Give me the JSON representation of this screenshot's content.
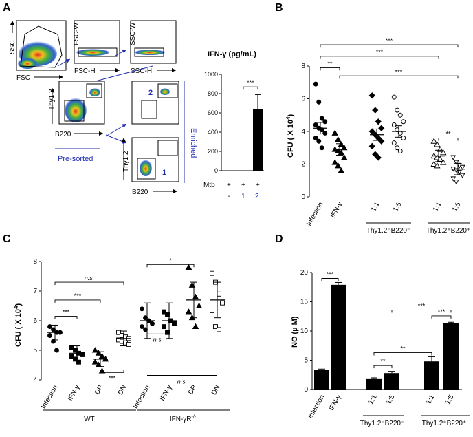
{
  "figure": {
    "panel_labels": {
      "A": "A",
      "B": "B",
      "C": "C",
      "D": "D"
    }
  },
  "panel_a": {
    "gates": {
      "ssc": "SSC",
      "fsc": "FSC",
      "fsc_w": "FSC-W",
      "fsc_h": "FSC-H",
      "ssc_w": "SSC-W",
      "ssc_h": "SSC-H",
      "thy12": "Thy1.2",
      "b220": "B220",
      "thy12_b": "Thy1.2",
      "b220_b": "B220"
    },
    "pre_sorted": "Pre-sorted",
    "enriched": "Enriched",
    "gate_num_1": "1",
    "gate_num_2": "2",
    "bar_title": "IFN-γ (pg/mL)",
    "mtb_label": "Mtb",
    "mtb_row": [
      "+",
      "+",
      "+"
    ],
    "cond_row": [
      "-",
      "1",
      "2"
    ],
    "sig": "***"
  },
  "chart_data": [
    {
      "panel": "A-inset",
      "type": "bar",
      "title": "IFN-γ (pg/mL)",
      "ylim": [
        0,
        1000
      ],
      "yticks": [
        "0",
        "200",
        "400",
        "600",
        "800",
        "1000"
      ],
      "yticks_values": [
        0,
        200,
        400,
        600,
        800,
        1000
      ],
      "categories": [
        "-",
        "1",
        "2"
      ],
      "values": [
        0,
        0,
        640
      ],
      "errors": [
        0,
        0,
        150
      ],
      "significance": "***"
    },
    {
      "panel": "B",
      "type": "scatter",
      "ylabel": "CFU ( X 10",
      "ylabel_sup": "4",
      "ylabel_tail": ")",
      "ylim": [
        0,
        8
      ],
      "yticks": [
        "0",
        "2",
        "4",
        "6",
        "8"
      ],
      "yticks_values": [
        0,
        2,
        4,
        6,
        8
      ],
      "categories": [
        "Infection",
        "IFN-γ",
        "1:1",
        "1:5",
        "1:1",
        "1:5"
      ],
      "groups": [
        {
          "label": "Thy1.2⁻B220⁻",
          "members": [
            "1:1",
            "1:5"
          ]
        },
        {
          "label": "Thy1.2⁺B220⁺",
          "members": [
            "1:1",
            "1:5"
          ]
        }
      ],
      "means": [
        4.2,
        2.9,
        3.8,
        4.0,
        2.5,
        1.7
      ],
      "points": [
        [
          6.9,
          5.8,
          4.8,
          4.6,
          4.4,
          4.2,
          4.1,
          3.9,
          3.6,
          3.4,
          3.0
        ],
        [
          3.9,
          3.5,
          3.2,
          3.0,
          2.9,
          2.8,
          2.7,
          2.4,
          2.1,
          1.9,
          1.6
        ],
        [
          6.2,
          5.3,
          4.6,
          4.2,
          4.0,
          3.8,
          3.6,
          3.4,
          3.1,
          2.6,
          2.4
        ],
        [
          6.1,
          5.3,
          5.0,
          4.6,
          4.4,
          4.1,
          3.9,
          3.6,
          3.3,
          3.0,
          2.8
        ],
        [
          3.4,
          3.2,
          2.9,
          2.7,
          2.5,
          2.4,
          2.3,
          2.1,
          2.0,
          1.9
        ],
        [
          2.4,
          2.1,
          1.9,
          1.8,
          1.7,
          1.6,
          1.5,
          1.3,
          1.1,
          0.9
        ]
      ],
      "significance": [
        "**",
        "***",
        "***",
        "***",
        "**"
      ]
    },
    {
      "panel": "C",
      "type": "scatter",
      "ylabel": "CFU ( X 10",
      "ylabel_sup": "4",
      "ylabel_tail": ")",
      "ylim": [
        4,
        8
      ],
      "yticks": [
        "4",
        "5",
        "6",
        "7",
        "8"
      ],
      "yticks_values": [
        4,
        5,
        6,
        7,
        8
      ],
      "categories": [
        "Infection",
        "IFN-γ",
        "DP",
        "DN",
        "Infection",
        "IFN-γ",
        "DP",
        "DN"
      ],
      "groups": [
        {
          "label": "WT",
          "members": [
            "Infection",
            "IFN-γ",
            "DP",
            "DN"
          ]
        },
        {
          "label": "IFN-γR",
          "label_sup": "-/-",
          "members": [
            "Infection",
            "IFN-γ",
            "DP",
            "DN"
          ]
        }
      ],
      "means": [
        5.6,
        4.9,
        4.7,
        5.4,
        6.0,
        6.0,
        6.7,
        6.7
      ],
      "points": [
        [
          5.8,
          5.7,
          5.6,
          5.6,
          5.5,
          5.3,
          5.0
        ],
        [
          5.1,
          5.0,
          4.9,
          4.85,
          4.8,
          4.7,
          4.6
        ],
        [
          5.0,
          4.9,
          4.8,
          4.7,
          4.6,
          4.5,
          4.3
        ],
        [
          5.6,
          5.5,
          5.45,
          5.4,
          5.35,
          5.3,
          5.25,
          5.2
        ],
        [
          6.4,
          6.1,
          6.0,
          5.9,
          5.8,
          5.7
        ],
        [
          6.3,
          6.2,
          6.0,
          5.9,
          5.8,
          5.6
        ],
        [
          7.8,
          7.2,
          6.8,
          6.5,
          6.3,
          6.1,
          5.8
        ],
        [
          7.6,
          7.3,
          6.9,
          6.6,
          6.2,
          5.8,
          5.7
        ]
      ],
      "significance": [
        "***",
        "***",
        "n.s.",
        "***",
        "*",
        "n.s.",
        "n.s."
      ]
    },
    {
      "panel": "D",
      "type": "bar",
      "ylabel": "NO (µ M)",
      "ylim": [
        0,
        20
      ],
      "yticks": [
        "0",
        "5",
        "10",
        "15",
        "20"
      ],
      "yticks_values": [
        0,
        5,
        10,
        15,
        20
      ],
      "categories": [
        "Infection",
        "IFN-γ",
        "1:1",
        "1:5",
        "1:1",
        "1:5"
      ],
      "groups": [
        {
          "label": "Thy1.2⁻B220⁻",
          "members": [
            "1:1",
            "1:5"
          ]
        },
        {
          "label": "Thy1.2⁺B220⁺",
          "members": [
            "1:1",
            "1:5"
          ]
        }
      ],
      "values": [
        3.4,
        17.9,
        1.9,
        2.8,
        4.8,
        11.4
      ],
      "errors": [
        0.1,
        0.4,
        0.1,
        0.3,
        0.8,
        0.1
      ],
      "significance": [
        "***",
        "**",
        "***",
        "**",
        "***"
      ]
    }
  ]
}
